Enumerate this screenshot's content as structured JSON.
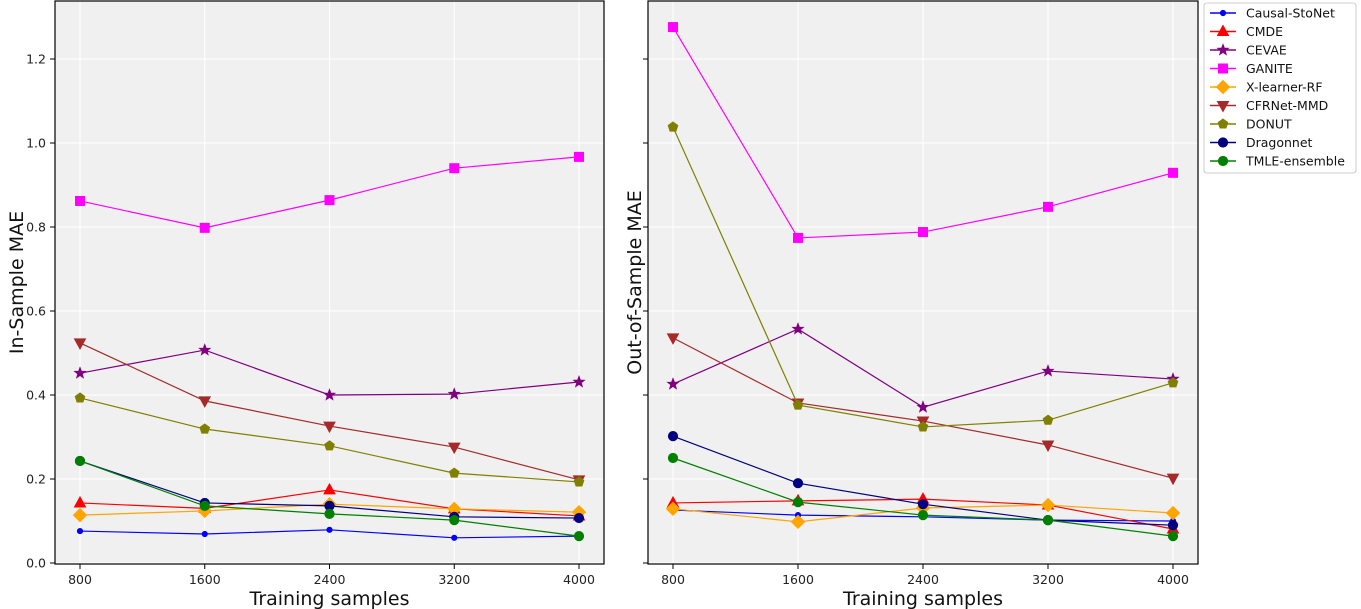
{
  "chart_data": [
    {
      "type": "line",
      "title": "",
      "xlabel": "Training samples",
      "ylabel": "In-Sample MAE",
      "x": [
        800,
        1600,
        2400,
        3200,
        4000
      ],
      "xticks": [
        "800",
        "1600",
        "2400",
        "3200",
        "4000"
      ],
      "yticks": [
        "0.0",
        "0.2",
        "0.4",
        "0.6",
        "0.8",
        "1.0",
        "1.2"
      ],
      "ylim": [
        0.0,
        1.33
      ],
      "grid": true,
      "series": [
        {
          "name": "Causal-StoNet",
          "color": "#0000ff",
          "marker": "point",
          "values": [
            0.076,
            0.069,
            0.079,
            0.06,
            0.064
          ]
        },
        {
          "name": "CMDE",
          "color": "#ff0000",
          "marker": "triangle-up",
          "values": [
            0.143,
            0.13,
            0.174,
            0.129,
            0.112
          ]
        },
        {
          "name": "CEVAE",
          "color": "#800080",
          "marker": "star",
          "values": [
            0.452,
            0.507,
            0.4,
            0.402,
            0.431
          ]
        },
        {
          "name": "GANITE",
          "color": "#ff00ff",
          "marker": "square",
          "values": [
            0.862,
            0.798,
            0.864,
            0.94,
            0.967
          ]
        },
        {
          "name": "X-learner-RF",
          "color": "#ffa500",
          "marker": "diamond",
          "values": [
            0.114,
            0.124,
            0.14,
            0.129,
            0.121
          ]
        },
        {
          "name": "CFRNet-MMD",
          "color": "#a52a2a",
          "marker": "triangle-down",
          "values": [
            0.524,
            0.386,
            0.326,
            0.276,
            0.198
          ]
        },
        {
          "name": "DONUT",
          "color": "#808000",
          "marker": "pentagon",
          "values": [
            0.393,
            0.319,
            0.279,
            0.214,
            0.193
          ]
        },
        {
          "name": "Dragonnet",
          "color": "#000080",
          "marker": "circle",
          "values": [
            0.243,
            0.143,
            0.136,
            0.11,
            0.107
          ]
        },
        {
          "name": "TMLE-ensemble",
          "color": "#008000",
          "marker": "circle",
          "values": [
            0.243,
            0.136,
            0.117,
            0.102,
            0.064
          ]
        }
      ]
    },
    {
      "type": "line",
      "title": "",
      "xlabel": "Training samples",
      "ylabel": "Out-of-Sample MAE",
      "x": [
        800,
        1600,
        2400,
        3200,
        4000
      ],
      "xticks": [
        "800",
        "1600",
        "2400",
        "3200",
        "4000"
      ],
      "yticks": [
        "",
        "",
        "",
        "",
        "",
        "",
        ""
      ],
      "ylim": [
        0.0,
        1.33
      ],
      "grid": true,
      "legend": "outside-top-right",
      "series": [
        {
          "name": "Causal-StoNet",
          "color": "#0000ff",
          "marker": "point",
          "values": [
            0.126,
            0.114,
            0.11,
            0.102,
            0.1
          ]
        },
        {
          "name": "CMDE",
          "color": "#ff0000",
          "marker": "triangle-up",
          "values": [
            0.143,
            0.148,
            0.152,
            0.138,
            0.081
          ]
        },
        {
          "name": "CEVAE",
          "color": "#800080",
          "marker": "star",
          "values": [
            0.426,
            0.557,
            0.371,
            0.457,
            0.438
          ]
        },
        {
          "name": "GANITE",
          "color": "#ff00ff",
          "marker": "square",
          "values": [
            1.276,
            0.774,
            0.788,
            0.848,
            0.929
          ]
        },
        {
          "name": "X-learner-RF",
          "color": "#ffa500",
          "marker": "diamond",
          "values": [
            0.129,
            0.098,
            0.131,
            0.138,
            0.119
          ]
        },
        {
          "name": "CFRNet-MMD",
          "color": "#a52a2a",
          "marker": "triangle-down",
          "values": [
            0.536,
            0.381,
            0.338,
            0.281,
            0.202
          ]
        },
        {
          "name": "DONUT",
          "color": "#808000",
          "marker": "pentagon",
          "values": [
            1.038,
            0.376,
            0.324,
            0.34,
            0.429
          ]
        },
        {
          "name": "Dragonnet",
          "color": "#000080",
          "marker": "circle",
          "values": [
            0.302,
            0.19,
            0.14,
            0.102,
            0.09
          ]
        },
        {
          "name": "TMLE-ensemble",
          "color": "#008000",
          "marker": "circle",
          "values": [
            0.25,
            0.145,
            0.114,
            0.102,
            0.064
          ]
        }
      ]
    }
  ]
}
